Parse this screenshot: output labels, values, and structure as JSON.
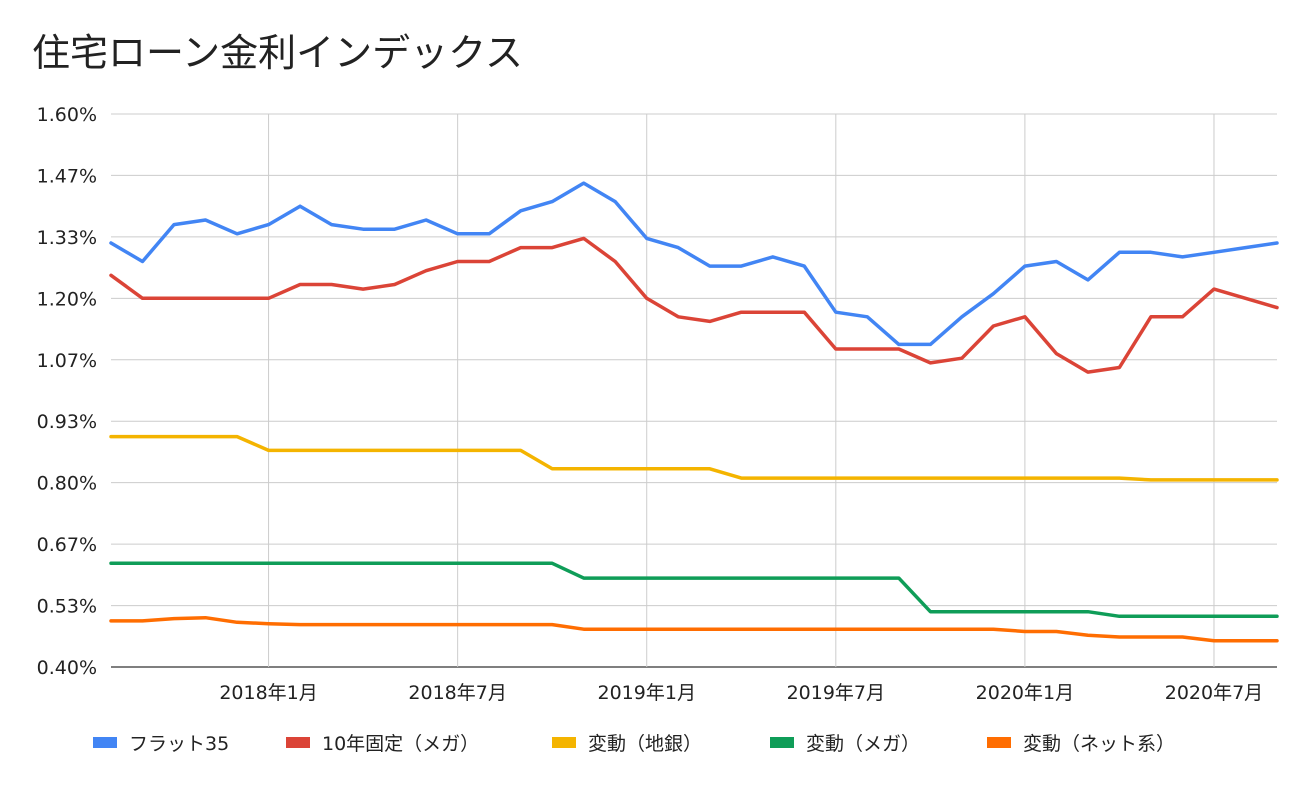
{
  "chart_data": {
    "type": "line",
    "title": "住宅ローン金利インデックス",
    "xlabel": "",
    "ylabel": "",
    "ylim": [
      0.4,
      1.6
    ],
    "y_ticks": [
      "0.40%",
      "0.53%",
      "0.67%",
      "0.80%",
      "0.93%",
      "1.07%",
      "1.20%",
      "1.33%",
      "1.47%",
      "1.60%"
    ],
    "y_tick_values": [
      0.4,
      0.5333,
      0.6667,
      0.8,
      0.9333,
      1.0667,
      1.2,
      1.3333,
      1.4667,
      1.6
    ],
    "x_tick_labels": [
      "2018年1月",
      "2018年7月",
      "2019年1月",
      "2019年7月",
      "2020年1月",
      "2020年7月"
    ],
    "x_tick_index": [
      5,
      11,
      17,
      23,
      29,
      35
    ],
    "x_range": [
      0,
      37
    ],
    "grid": true,
    "legend_position": "bottom",
    "series": [
      {
        "name": "フラット35",
        "color": "#4285f4",
        "values": [
          1.32,
          1.28,
          1.36,
          1.37,
          1.34,
          1.36,
          1.4,
          1.36,
          1.35,
          1.35,
          1.37,
          1.34,
          1.34,
          1.39,
          1.41,
          1.45,
          1.41,
          1.33,
          1.31,
          1.27,
          1.27,
          1.29,
          1.27,
          1.17,
          1.16,
          1.1,
          1.1,
          1.16,
          1.21,
          1.27,
          1.28,
          1.24,
          1.3,
          1.3,
          1.29,
          1.3,
          1.31,
          1.32
        ]
      },
      {
        "name": "10年固定（メガ）",
        "color": "#db4437",
        "values": [
          1.25,
          1.2,
          1.2,
          1.2,
          1.2,
          1.2,
          1.23,
          1.23,
          1.22,
          1.23,
          1.26,
          1.28,
          1.28,
          1.31,
          1.31,
          1.33,
          1.28,
          1.2,
          1.16,
          1.15,
          1.17,
          1.17,
          1.17,
          1.09,
          1.09,
          1.09,
          1.06,
          1.07,
          1.14,
          1.16,
          1.08,
          1.04,
          1.05,
          1.16,
          1.16,
          1.22,
          1.2,
          1.18
        ]
      },
      {
        "name": "変動（地銀）",
        "color": "#f4b400",
        "values": [
          0.9,
          0.9,
          0.9,
          0.9,
          0.9,
          0.87,
          0.87,
          0.87,
          0.87,
          0.87,
          0.87,
          0.87,
          0.87,
          0.87,
          0.83,
          0.83,
          0.83,
          0.83,
          0.83,
          0.83,
          0.81,
          0.81,
          0.81,
          0.81,
          0.81,
          0.81,
          0.81,
          0.81,
          0.81,
          0.81,
          0.81,
          0.81,
          0.81,
          0.806,
          0.806,
          0.806,
          0.806,
          0.806
        ]
      },
      {
        "name": "変動（メガ）",
        "color": "#0f9d58",
        "values": [
          0.625,
          0.625,
          0.625,
          0.625,
          0.625,
          0.625,
          0.625,
          0.625,
          0.625,
          0.625,
          0.625,
          0.625,
          0.625,
          0.625,
          0.625,
          0.593,
          0.593,
          0.593,
          0.593,
          0.593,
          0.593,
          0.593,
          0.593,
          0.593,
          0.593,
          0.593,
          0.52,
          0.52,
          0.52,
          0.52,
          0.52,
          0.52,
          0.51,
          0.51,
          0.51,
          0.51,
          0.51,
          0.51
        ]
      },
      {
        "name": "変動（ネット系）",
        "color": "#ff6d01",
        "values": [
          0.5,
          0.5,
          0.505,
          0.507,
          0.497,
          0.494,
          0.492,
          0.492,
          0.492,
          0.492,
          0.492,
          0.492,
          0.492,
          0.492,
          0.492,
          0.482,
          0.482,
          0.482,
          0.482,
          0.482,
          0.482,
          0.482,
          0.482,
          0.482,
          0.482,
          0.482,
          0.482,
          0.482,
          0.482,
          0.477,
          0.477,
          0.469,
          0.465,
          0.465,
          0.465,
          0.457,
          0.457,
          0.457
        ]
      }
    ]
  }
}
